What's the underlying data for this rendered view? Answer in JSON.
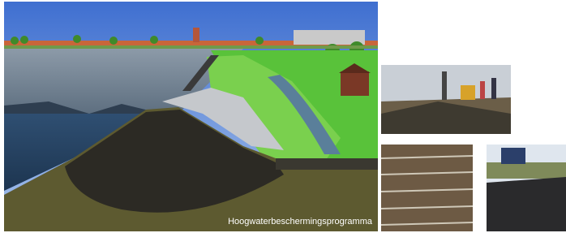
{
  "caption": "Hoogwaterbeschermingsprogramma"
}
